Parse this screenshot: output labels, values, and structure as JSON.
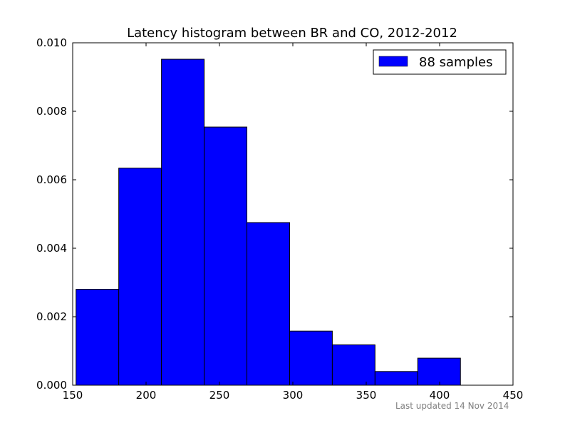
{
  "chart_data": {
    "type": "bar",
    "title": "Latency histogram between BR and CO, 2012-2012",
    "xlabel": "",
    "ylabel": "",
    "bin_edges": [
      152.3,
      181.4,
      210.5,
      239.6,
      268.7,
      297.8,
      326.9,
      356.0,
      385.1,
      414.2
    ],
    "values": [
      0.0028,
      0.00634,
      0.00952,
      0.00754,
      0.00475,
      0.00158,
      0.00118,
      0.0004,
      0.00079
    ],
    "series": [
      {
        "name": "88 samples",
        "color": "#0000ff"
      }
    ],
    "xlim": [
      150,
      450
    ],
    "ylim": [
      0,
      0.01
    ],
    "x_ticks": [
      "150",
      "200",
      "250",
      "300",
      "350",
      "400",
      "450"
    ],
    "y_ticks": [
      "0.000",
      "0.002",
      "0.004",
      "0.006",
      "0.008",
      "0.010"
    ],
    "grid": false,
    "legend_position": "top-right"
  },
  "footnote": "Last updated 14 Nov 2014",
  "colors": {
    "bar_fill": "#0000ff",
    "bar_edge": "#000000",
    "footnote": "#808080"
  }
}
